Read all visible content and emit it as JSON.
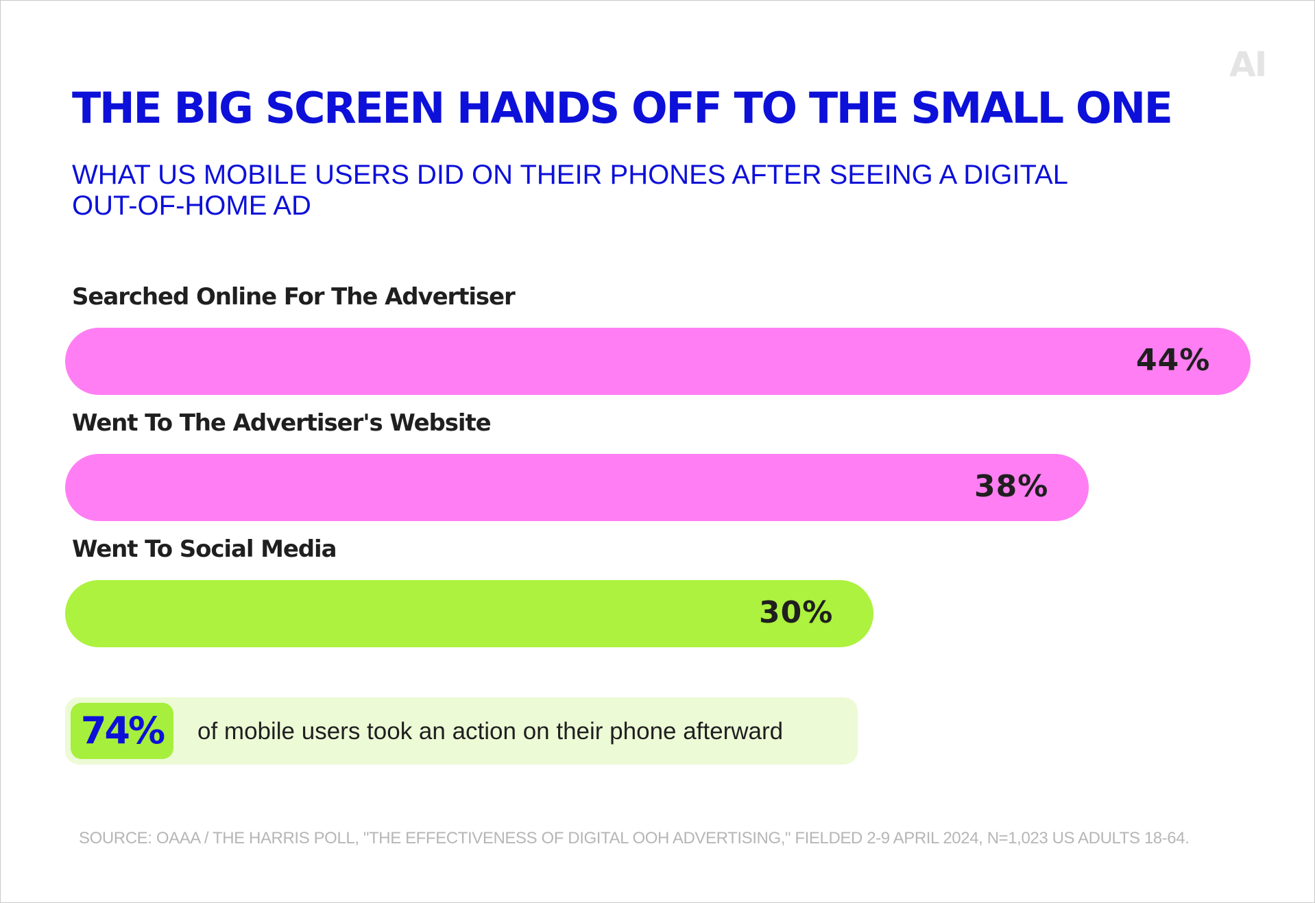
{
  "brand": {
    "logo_text": "AI"
  },
  "colors": {
    "title": "#0d10d8",
    "bar_pink": "#ff7ef3",
    "bar_green": "#acf23e",
    "callout_bg": "#ecfad6",
    "callout_badge": "#a6ef3c",
    "text_dark": "#1f1f1f",
    "source_text": "#b6b6b6"
  },
  "chart_data": {
    "type": "bar",
    "orientation": "horizontal",
    "title": "THE BIG SCREEN HANDS OFF TO THE SMALL ONE",
    "subtitle": "WHAT US MOBILE USERS DID ON THEIR PHONES AFTER SEEING A DIGITAL OUT-OF-HOME AD",
    "categories": [
      "Searched Online For The Advertiser",
      "Went To The Advertiser's Website",
      "Went To Social Media"
    ],
    "values": [
      44,
      38,
      30
    ],
    "value_labels": [
      "44%",
      "38%",
      "30%"
    ],
    "bar_colors": [
      "#ff7ef3",
      "#ff7ef3",
      "#acf23e"
    ],
    "unit": "%",
    "grid": false,
    "legend": "none"
  },
  "callout": {
    "value": "74%",
    "text": "of mobile users took an action on their phone afterward"
  },
  "source": "SOURCE: OAAA / THE HARRIS POLL, \"THE EFFECTIVENESS OF DIGITAL OOH ADVERTISING,\" FIELDED 2-9 APRIL 2024, N=1,023 US ADULTS 18-64."
}
